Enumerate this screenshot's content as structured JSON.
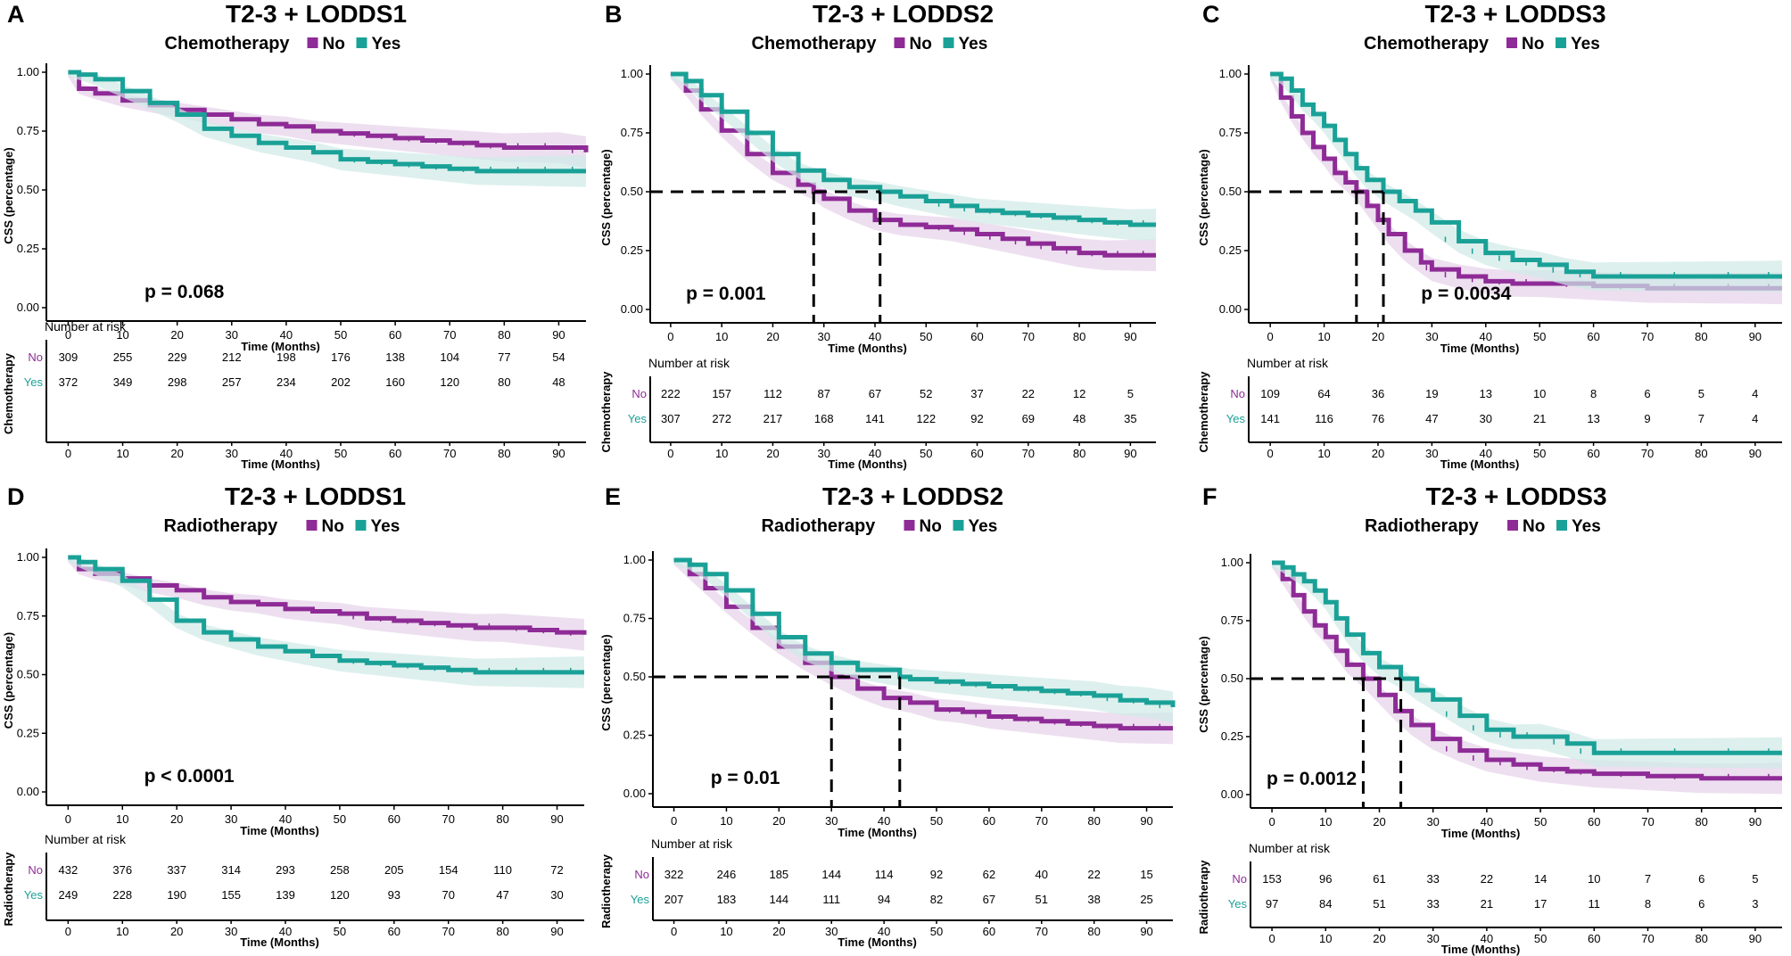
{
  "colors": {
    "no": "#8e2b96",
    "yes": "#1aa197",
    "no_band": "#e6d2ea",
    "yes_band": "#cfeae7",
    "axis": "#000000",
    "median": "#000000"
  },
  "axis_labels": {
    "x": "Time (Months)",
    "y": "CSS (percentage)",
    "risk_heading": "Number at risk"
  },
  "legend_labels": {
    "no": "No",
    "yes": "Yes"
  },
  "chart_data": [
    {
      "type": "line",
      "letter": "A",
      "title": "T2-3 + LODDS1",
      "legend_title": "Chemotherapy",
      "p_value": "p = 0.068",
      "x_ticks": [
        0,
        10,
        20,
        30,
        40,
        50,
        60,
        70,
        80,
        90
      ],
      "y_ticks": [
        "0.00",
        "0.25",
        "0.50",
        "0.75",
        "1.00"
      ],
      "xlim": [
        0,
        95
      ],
      "ylim": [
        0,
        1
      ],
      "series": [
        {
          "name": "No",
          "x": [
            0,
            2,
            5,
            10,
            15,
            20,
            25,
            30,
            35,
            40,
            45,
            50,
            55,
            60,
            65,
            70,
            75,
            80,
            85,
            90,
            95
          ],
          "values": [
            1.0,
            0.93,
            0.91,
            0.88,
            0.86,
            0.84,
            0.82,
            0.8,
            0.78,
            0.77,
            0.75,
            0.74,
            0.73,
            0.72,
            0.71,
            0.7,
            0.69,
            0.68,
            0.68,
            0.68,
            0.66
          ]
        },
        {
          "name": "Yes",
          "x": [
            0,
            2,
            5,
            10,
            15,
            20,
            25,
            30,
            35,
            40,
            45,
            50,
            55,
            60,
            65,
            70,
            75,
            80,
            85,
            90,
            95
          ],
          "values": [
            1.0,
            0.99,
            0.97,
            0.92,
            0.87,
            0.82,
            0.76,
            0.73,
            0.7,
            0.68,
            0.66,
            0.63,
            0.62,
            0.61,
            0.6,
            0.59,
            0.58,
            0.58,
            0.58,
            0.58,
            0.58
          ]
        }
      ],
      "median_months": [],
      "risk_table": {
        "group_label": "Chemotherapy",
        "no": [
          309,
          255,
          229,
          212,
          198,
          176,
          138,
          104,
          77,
          54
        ],
        "yes": [
          372,
          349,
          298,
          257,
          234,
          202,
          160,
          120,
          80,
          48
        ]
      }
    },
    {
      "type": "line",
      "letter": "B",
      "title": "T2-3 + LODDS2",
      "legend_title": "Chemotherapy",
      "p_value": "p = 0.001",
      "x_ticks": [
        0,
        10,
        20,
        30,
        40,
        50,
        60,
        70,
        80,
        90
      ],
      "y_ticks": [
        "0.00",
        "0.25",
        "0.50",
        "0.75",
        "1.00"
      ],
      "xlim": [
        0,
        95
      ],
      "ylim": [
        0,
        1
      ],
      "series": [
        {
          "name": "No",
          "x": [
            0,
            3,
            6,
            10,
            15,
            20,
            25,
            28,
            30,
            35,
            40,
            45,
            50,
            55,
            60,
            65,
            70,
            75,
            80,
            85,
            90,
            95
          ],
          "values": [
            1.0,
            0.93,
            0.85,
            0.76,
            0.66,
            0.58,
            0.53,
            0.5,
            0.47,
            0.42,
            0.38,
            0.36,
            0.35,
            0.34,
            0.32,
            0.3,
            0.28,
            0.26,
            0.24,
            0.23,
            0.23,
            0.23
          ]
        },
        {
          "name": "Yes",
          "x": [
            0,
            3,
            6,
            10,
            15,
            20,
            25,
            30,
            35,
            41,
            45,
            50,
            55,
            60,
            65,
            70,
            75,
            80,
            85,
            90,
            95
          ],
          "values": [
            1.0,
            0.97,
            0.91,
            0.84,
            0.75,
            0.66,
            0.59,
            0.55,
            0.52,
            0.5,
            0.48,
            0.46,
            0.44,
            0.42,
            0.41,
            0.4,
            0.39,
            0.38,
            0.37,
            0.36,
            0.36
          ]
        }
      ],
      "median_months": [
        28,
        41
      ],
      "risk_table": {
        "group_label": "Chemotherapy",
        "no": [
          222,
          157,
          112,
          87,
          67,
          52,
          37,
          22,
          12,
          5
        ],
        "yes": [
          307,
          272,
          217,
          168,
          141,
          122,
          92,
          69,
          48,
          35
        ]
      }
    },
    {
      "type": "line",
      "letter": "C",
      "title": "T2-3 + LODDS3",
      "legend_title": "Chemotherapy",
      "p_value": "p = 0.0034",
      "x_ticks": [
        0,
        10,
        20,
        30,
        40,
        50,
        60,
        70,
        80,
        90
      ],
      "y_ticks": [
        "0.00",
        "0.25",
        "0.50",
        "0.75",
        "1.00"
      ],
      "xlim": [
        0,
        95
      ],
      "ylim": [
        0,
        1
      ],
      "series": [
        {
          "name": "No",
          "x": [
            0,
            2,
            4,
            6,
            8,
            10,
            12,
            14,
            16,
            18,
            20,
            22,
            25,
            28,
            30,
            35,
            40,
            45,
            50,
            60,
            70,
            80,
            90,
            95
          ],
          "values": [
            1.0,
            0.9,
            0.82,
            0.75,
            0.69,
            0.64,
            0.58,
            0.54,
            0.5,
            0.44,
            0.38,
            0.32,
            0.25,
            0.2,
            0.17,
            0.14,
            0.12,
            0.11,
            0.11,
            0.1,
            0.09,
            0.09,
            0.09,
            0.09
          ]
        },
        {
          "name": "Yes",
          "x": [
            0,
            2,
            4,
            6,
            8,
            10,
            12,
            14,
            16,
            18,
            21,
            24,
            27,
            30,
            35,
            40,
            45,
            50,
            55,
            60,
            70,
            80,
            90,
            95
          ],
          "values": [
            1.0,
            0.98,
            0.93,
            0.87,
            0.83,
            0.78,
            0.72,
            0.66,
            0.6,
            0.55,
            0.5,
            0.46,
            0.42,
            0.37,
            0.29,
            0.24,
            0.21,
            0.19,
            0.16,
            0.14,
            0.14,
            0.14,
            0.14,
            0.14
          ]
        }
      ],
      "median_months": [
        16,
        21
      ],
      "risk_table": {
        "group_label": "Chemotherapy",
        "no": [
          109,
          64,
          36,
          19,
          13,
          10,
          8,
          6,
          5,
          4
        ],
        "yes": [
          141,
          116,
          76,
          47,
          30,
          21,
          13,
          9,
          7,
          4
        ]
      }
    },
    {
      "type": "line",
      "letter": "D",
      "title": "T2-3 + LODDS1",
      "legend_title": "Radiotherapy",
      "p_value": "p < 0.0001",
      "x_ticks": [
        0,
        10,
        20,
        30,
        40,
        50,
        60,
        70,
        80,
        90
      ],
      "y_ticks": [
        "0.00",
        "0.25",
        "0.50",
        "0.75",
        "1.00"
      ],
      "xlim": [
        0,
        95
      ],
      "ylim": [
        0,
        1
      ],
      "series": [
        {
          "name": "No",
          "x": [
            0,
            2,
            5,
            10,
            15,
            20,
            25,
            30,
            35,
            40,
            45,
            50,
            55,
            60,
            65,
            70,
            75,
            80,
            85,
            90,
            95
          ],
          "values": [
            1.0,
            0.95,
            0.93,
            0.91,
            0.88,
            0.86,
            0.83,
            0.81,
            0.8,
            0.78,
            0.77,
            0.76,
            0.74,
            0.73,
            0.72,
            0.71,
            0.7,
            0.7,
            0.69,
            0.68,
            0.67
          ]
        },
        {
          "name": "Yes",
          "x": [
            0,
            2,
            5,
            10,
            15,
            20,
            25,
            30,
            35,
            40,
            45,
            50,
            55,
            60,
            65,
            70,
            75,
            80,
            85,
            90,
            95
          ],
          "values": [
            1.0,
            0.98,
            0.95,
            0.9,
            0.82,
            0.73,
            0.68,
            0.65,
            0.62,
            0.6,
            0.58,
            0.56,
            0.55,
            0.54,
            0.53,
            0.52,
            0.51,
            0.51,
            0.51,
            0.51,
            0.51
          ]
        }
      ],
      "median_months": [],
      "risk_table": {
        "group_label": "Radiotherapy",
        "no": [
          432,
          376,
          337,
          314,
          293,
          258,
          205,
          154,
          110,
          72
        ],
        "yes": [
          249,
          228,
          190,
          155,
          139,
          120,
          93,
          70,
          47,
          30
        ]
      }
    },
    {
      "type": "line",
      "letter": "E",
      "title": "T2-3 + LODDS2",
      "legend_title": "Radiotherapy",
      "p_value": "p = 0.01",
      "x_ticks": [
        0,
        10,
        20,
        30,
        40,
        50,
        60,
        70,
        80,
        90
      ],
      "y_ticks": [
        "0.00",
        "0.25",
        "0.50",
        "0.75",
        "1.00"
      ],
      "xlim": [
        0,
        95
      ],
      "ylim": [
        0,
        1
      ],
      "series": [
        {
          "name": "No",
          "x": [
            0,
            3,
            6,
            10,
            15,
            20,
            25,
            30,
            35,
            40,
            45,
            50,
            55,
            60,
            65,
            70,
            75,
            80,
            85,
            90,
            95
          ],
          "values": [
            1.0,
            0.94,
            0.88,
            0.8,
            0.71,
            0.63,
            0.56,
            0.5,
            0.45,
            0.41,
            0.39,
            0.36,
            0.35,
            0.33,
            0.32,
            0.31,
            0.3,
            0.29,
            0.28,
            0.28,
            0.28
          ]
        },
        {
          "name": "Yes",
          "x": [
            0,
            3,
            6,
            10,
            15,
            20,
            25,
            30,
            35,
            43,
            45,
            50,
            55,
            60,
            65,
            70,
            75,
            80,
            85,
            90,
            95
          ],
          "values": [
            1.0,
            0.98,
            0.94,
            0.87,
            0.77,
            0.67,
            0.6,
            0.56,
            0.53,
            0.5,
            0.49,
            0.48,
            0.47,
            0.46,
            0.45,
            0.44,
            0.43,
            0.42,
            0.4,
            0.39,
            0.37
          ]
        }
      ],
      "median_months": [
        30,
        43
      ],
      "risk_table": {
        "group_label": "Radiotherapy",
        "no": [
          322,
          246,
          185,
          144,
          114,
          92,
          62,
          40,
          22,
          15
        ],
        "yes": [
          207,
          183,
          144,
          111,
          94,
          82,
          67,
          51,
          38,
          25
        ]
      }
    },
    {
      "type": "line",
      "letter": "F",
      "title": "T2-3 + LODDS3",
      "legend_title": "Radiotherapy",
      "p_value": "p = 0.0012",
      "x_ticks": [
        0,
        10,
        20,
        30,
        40,
        50,
        60,
        70,
        80,
        90
      ],
      "y_ticks": [
        "0.00",
        "0.25",
        "0.50",
        "0.75",
        "1.00"
      ],
      "xlim": [
        0,
        95
      ],
      "ylim": [
        0,
        1
      ],
      "series": [
        {
          "name": "No",
          "x": [
            0,
            2,
            4,
            6,
            8,
            10,
            12,
            14,
            17,
            20,
            23,
            26,
            30,
            35,
            40,
            45,
            50,
            55,
            60,
            70,
            80,
            90,
            95
          ],
          "values": [
            1.0,
            0.93,
            0.86,
            0.79,
            0.73,
            0.68,
            0.62,
            0.56,
            0.5,
            0.43,
            0.36,
            0.3,
            0.24,
            0.19,
            0.15,
            0.13,
            0.11,
            0.1,
            0.09,
            0.08,
            0.07,
            0.07,
            0.07
          ]
        },
        {
          "name": "Yes",
          "x": [
            0,
            2,
            4,
            6,
            8,
            10,
            12,
            14,
            17,
            20,
            24,
            27,
            30,
            35,
            40,
            45,
            50,
            55,
            60,
            70,
            80,
            90,
            95
          ],
          "values": [
            1.0,
            0.98,
            0.95,
            0.92,
            0.88,
            0.83,
            0.76,
            0.69,
            0.61,
            0.55,
            0.5,
            0.45,
            0.41,
            0.34,
            0.28,
            0.25,
            0.25,
            0.22,
            0.18,
            0.18,
            0.18,
            0.18,
            0.18
          ]
        }
      ],
      "median_months": [
        17,
        24
      ],
      "risk_table": {
        "group_label": "Radiotherapy",
        "no": [
          153,
          96,
          61,
          33,
          22,
          14,
          10,
          7,
          6,
          5
        ],
        "yes": [
          97,
          84,
          51,
          33,
          21,
          17,
          11,
          8,
          6,
          3
        ]
      }
    }
  ]
}
